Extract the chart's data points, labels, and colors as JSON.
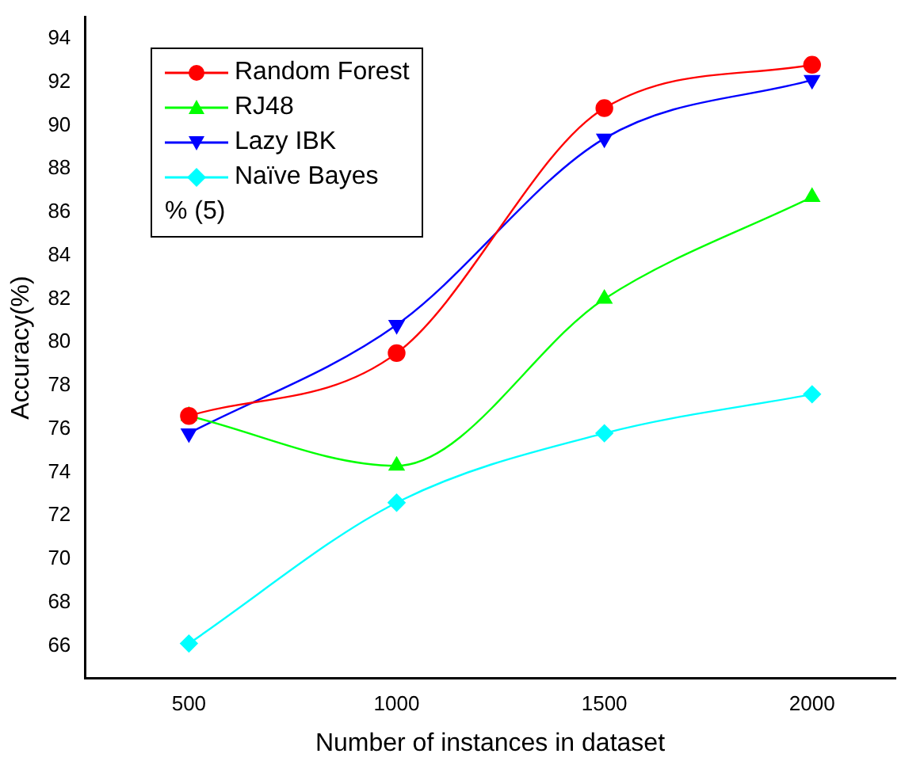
{
  "chart_data": {
    "type": "line",
    "xlabel": "Number of instances in dataset",
    "ylabel": "Accuracy(%)",
    "x": [
      500,
      1000,
      1500,
      2000
    ],
    "xlim": [
      250,
      2200
    ],
    "xticks": [
      500,
      1000,
      1500,
      2000
    ],
    "ylim": [
      64.5,
      95
    ],
    "yticks": [
      66,
      68,
      70,
      72,
      74,
      76,
      78,
      80,
      82,
      84,
      86,
      88,
      90,
      92,
      94
    ],
    "series": [
      {
        "name": "Random Forest",
        "color": "#ff0000",
        "marker": "circle",
        "values": [
          76.6,
          79.5,
          90.8,
          92.8
        ]
      },
      {
        "name": "RJ48",
        "color": "#00ff00",
        "marker": "triangle",
        "values": [
          76.6,
          74.3,
          82.0,
          86.7
        ]
      },
      {
        "name": "Lazy IBK",
        "color": "#0000ff",
        "marker": "triangle-down",
        "values": [
          75.8,
          80.8,
          89.4,
          92.1
        ]
      },
      {
        "name": "Naïve Bayes",
        "color": "#00ffff",
        "marker": "diamond",
        "values": [
          66.1,
          72.6,
          75.8,
          77.6
        ]
      }
    ],
    "legend": "top left",
    "annotations": [
      "% (5)"
    ]
  }
}
